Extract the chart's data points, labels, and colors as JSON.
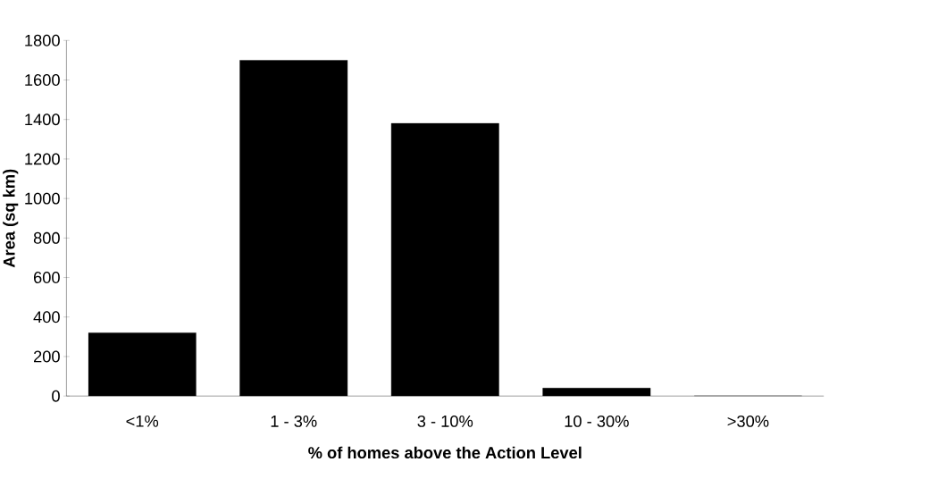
{
  "chart_data": {
    "type": "bar",
    "xlabel": "% of homes above the Action Level",
    "ylabel": "Area (sq km)",
    "categories": [
      "<1%",
      "1 - 3%",
      "3 - 10%",
      "10 - 30%",
      ">30%"
    ],
    "values": [
      320,
      1700,
      1380,
      40,
      0
    ],
    "color": "#000000",
    "ylim": [
      0,
      1800
    ],
    "yticks": [
      0,
      200,
      400,
      600,
      800,
      1000,
      1200,
      1400,
      1600,
      1800
    ],
    "grid": false
  }
}
